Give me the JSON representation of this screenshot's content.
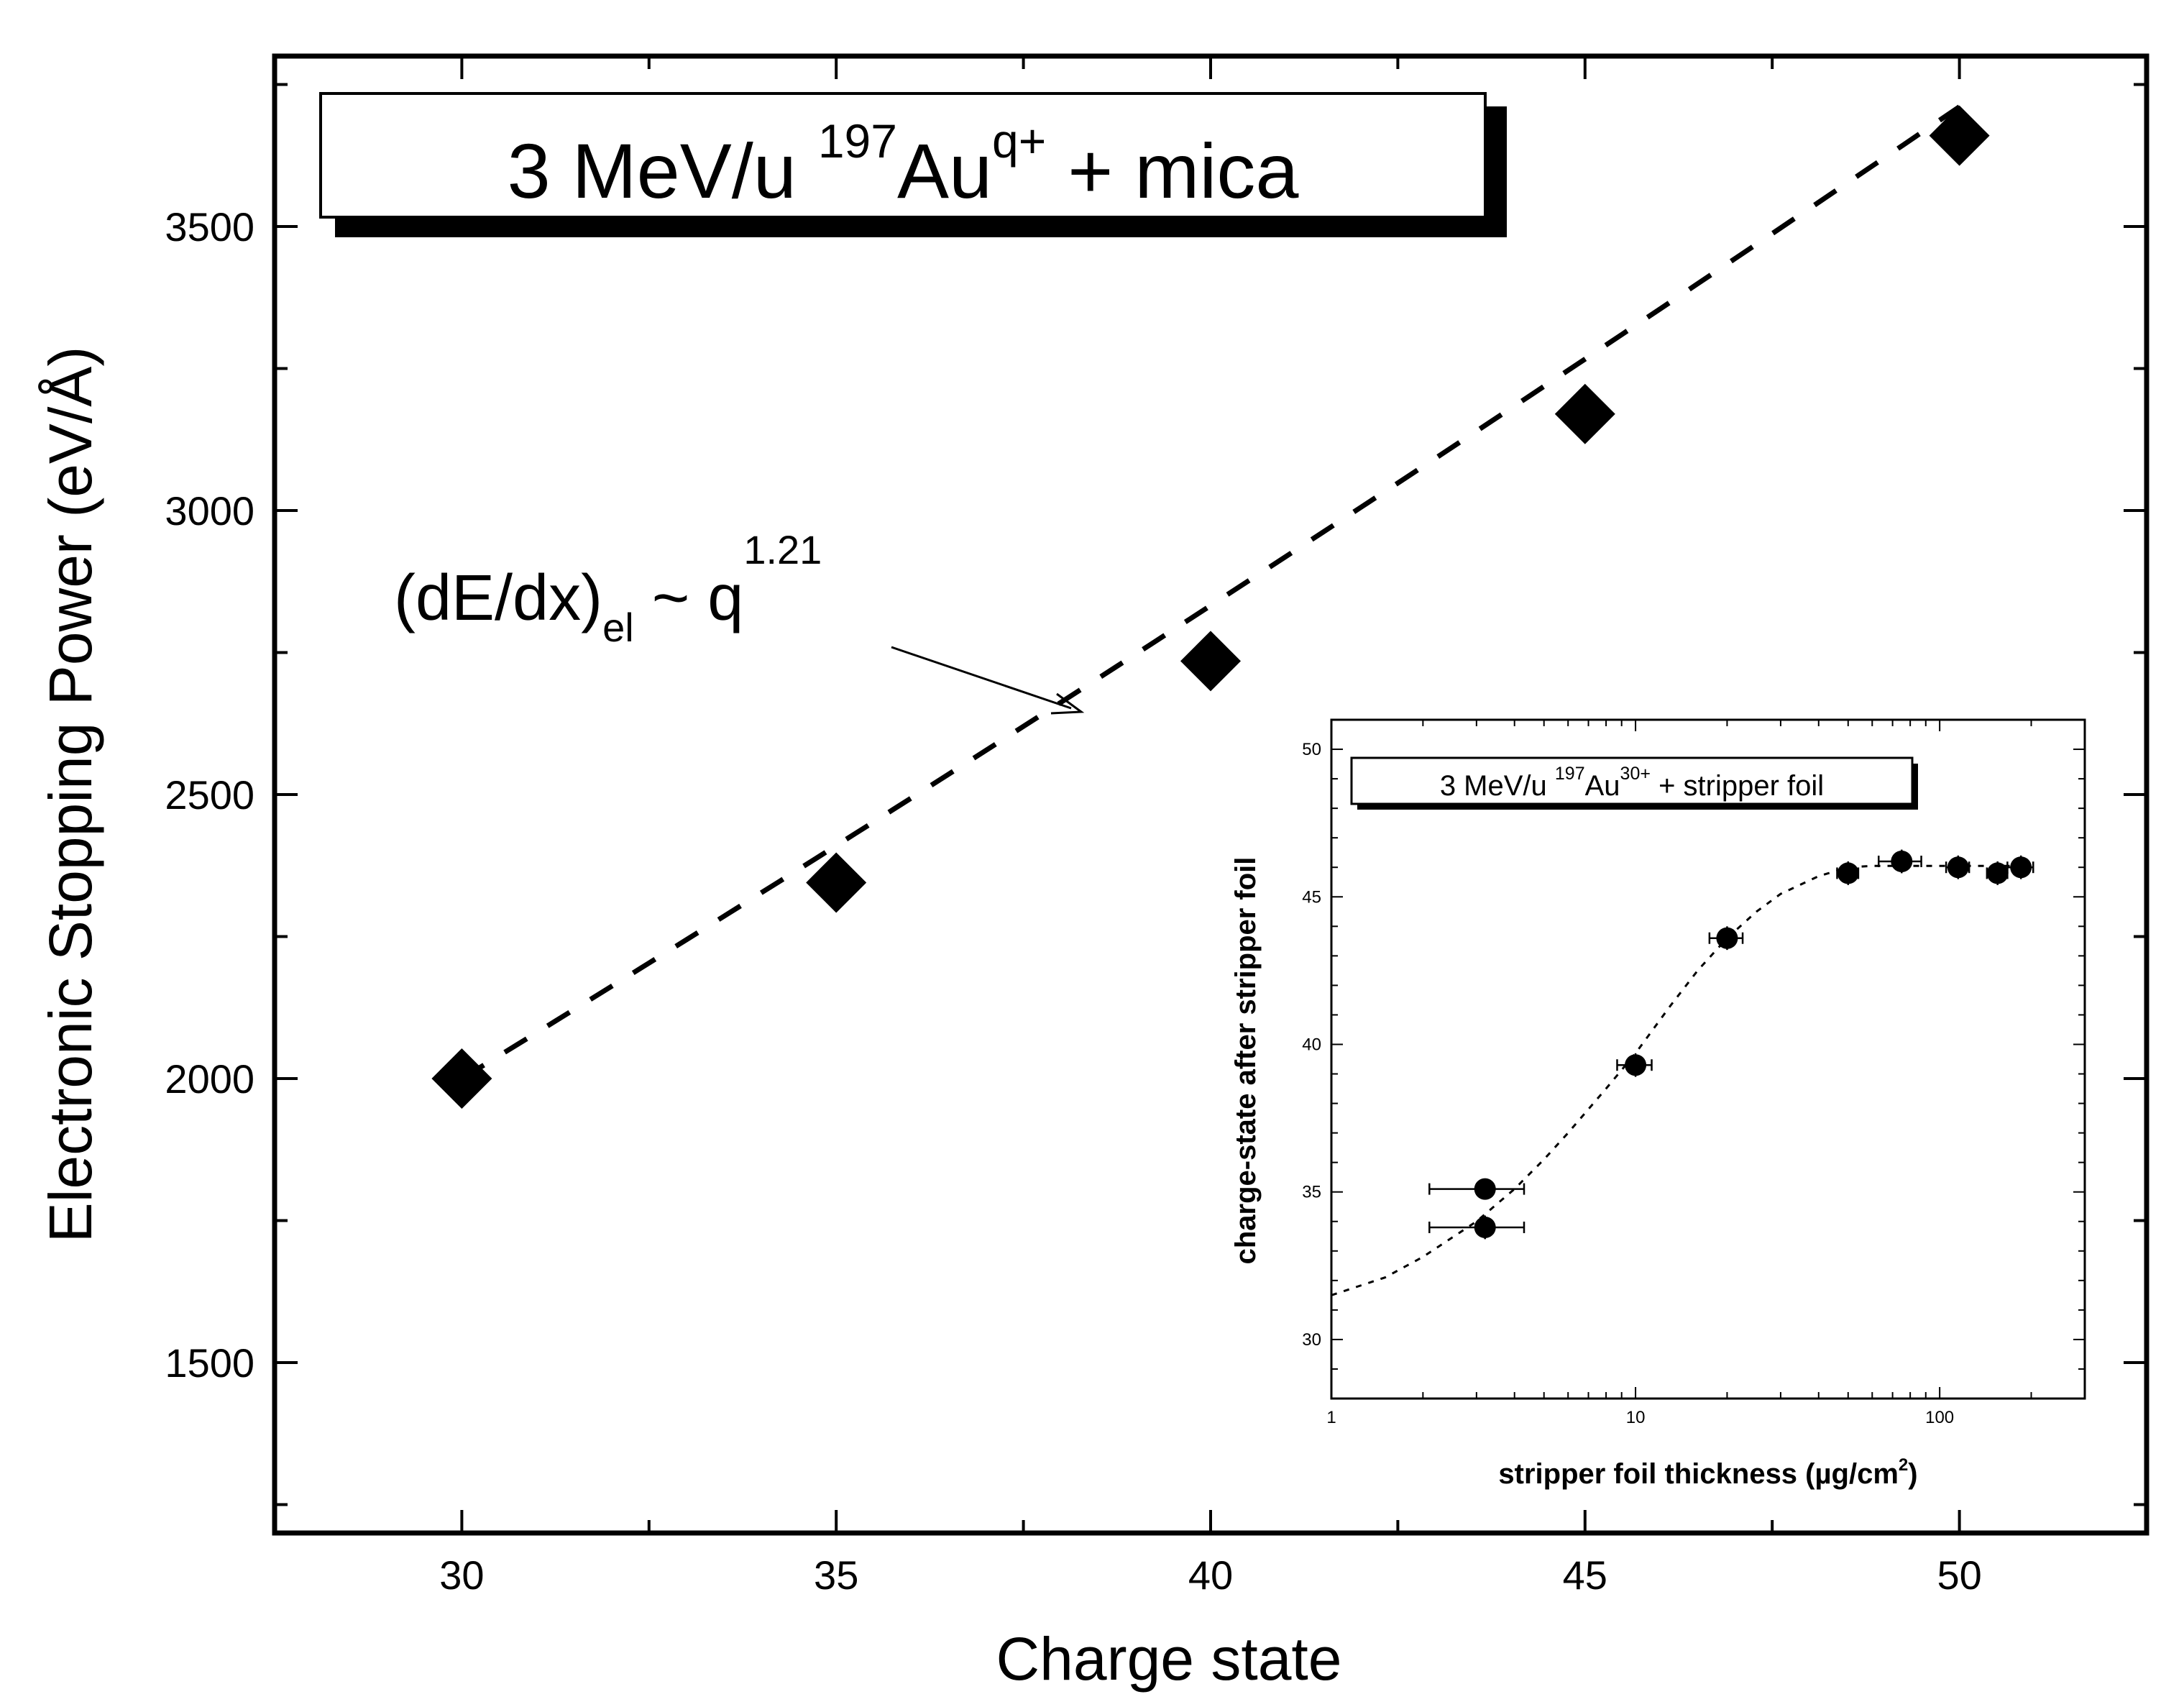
{
  "chart_data": [
    {
      "type": "scatter",
      "title": {
        "part1": "3 MeV/u ",
        "mass_number": "197",
        "element": "Au",
        "charge_superscript": "q+",
        "part2": " + mica"
      },
      "xlabel": "Charge state",
      "ylabel": "Electronic Stopping Power (eV/Å)",
      "xlim": [
        27.5,
        52.5
      ],
      "ylim": [
        1200,
        3800
      ],
      "x_ticks": [
        "30",
        "35",
        "40",
        "45",
        "50"
      ],
      "y_ticks": [
        "1500",
        "2000",
        "2500",
        "3000",
        "3500"
      ],
      "series": [
        {
          "name": "measured",
          "marker": "diamond",
          "x": [
            30,
            35,
            40,
            45,
            50
          ],
          "y": [
            2000,
            2345,
            2735,
            3170,
            3660
          ]
        },
        {
          "name": "fit",
          "style": "dashed",
          "exponent": 1.21,
          "x_range": [
            30,
            50
          ]
        }
      ],
      "annotation": {
        "base": "(dE/dx)",
        "subscript": "el",
        "middle": " ~ q",
        "superscript": "1.21"
      }
    },
    {
      "type": "scatter",
      "inset": true,
      "title": {
        "part1": "3 MeV/u ",
        "mass_number": "197",
        "element": "Au",
        "charge_superscript": "30+",
        "part2": " + stripper foil"
      },
      "xlabel": "stripper foil thickness  (µg/cm",
      "xlabel_superscript": "2",
      "xlabel_end": ")",
      "ylabel": "charge-state after stripper foil",
      "xscale": "log",
      "xlim": [
        1,
        300
      ],
      "ylim": [
        28,
        51
      ],
      "x_ticks": [
        "1",
        "10",
        "100"
      ],
      "y_ticks": [
        "30",
        "35",
        "40",
        "45",
        "50"
      ],
      "series": [
        {
          "name": "measured",
          "marker": "circle",
          "x": [
            3.2,
            3.2,
            10,
            20,
            50,
            75,
            115,
            155,
            185
          ],
          "y": [
            35.1,
            33.8,
            39.3,
            43.6,
            45.8,
            46.2,
            46.0,
            45.8,
            46.0
          ],
          "x_err": [
            1.1,
            1.1,
            1.3,
            2.5,
            4,
            12,
            10,
            12,
            18
          ],
          "y_err": [
            0.3,
            0.4,
            0.4,
            0.4,
            0.4,
            0.4,
            0.4,
            0.4,
            0.4
          ]
        },
        {
          "name": "fit",
          "style": "dotted",
          "x": [
            1,
            1.5,
            2,
            3,
            4,
            5,
            6,
            8,
            10,
            13,
            16,
            20,
            25,
            30,
            40,
            50,
            60,
            80,
            100,
            150,
            200
          ],
          "y": [
            31.5,
            32.1,
            32.8,
            34.0,
            35.1,
            36.1,
            37.0,
            38.5,
            39.7,
            41.3,
            42.5,
            43.6,
            44.5,
            45.1,
            45.7,
            46.0,
            46.05,
            46.05,
            46.05,
            46.05,
            46.05
          ]
        }
      ]
    }
  ]
}
